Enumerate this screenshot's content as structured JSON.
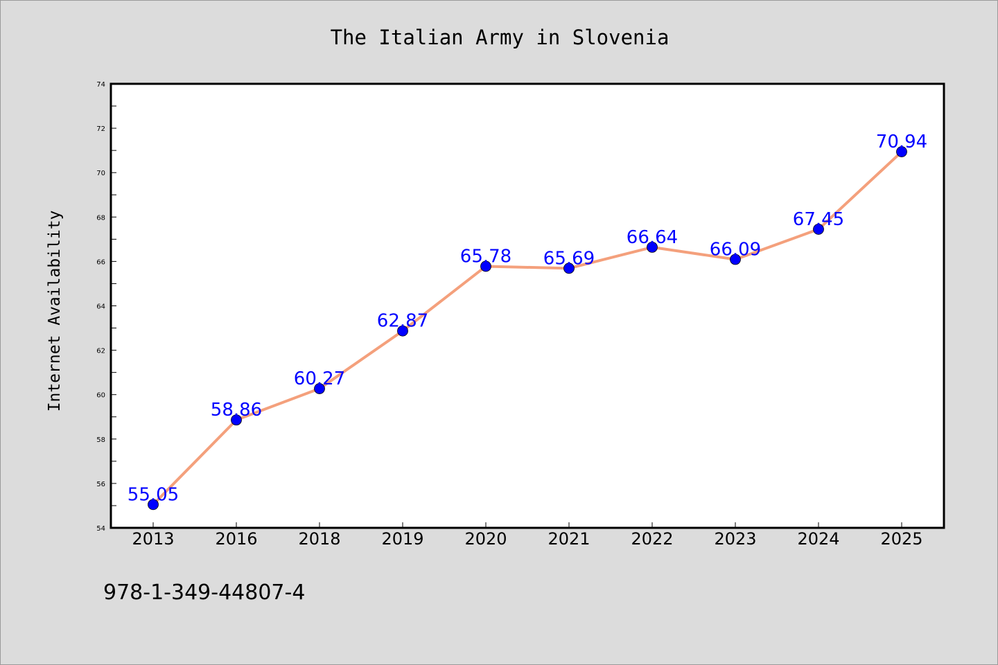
{
  "chart_data": {
    "type": "line",
    "title": "The Italian Army in Slovenia",
    "xlabel": "",
    "ylabel": "Internet Availability",
    "categories": [
      "2013",
      "2016",
      "2018",
      "2019",
      "2020",
      "2021",
      "2022",
      "2023",
      "2024",
      "2025"
    ],
    "series": [
      {
        "values": [
          55.05,
          58.86,
          60.27,
          62.87,
          65.78,
          65.69,
          66.64,
          66.09,
          67.45,
          70.94
        ],
        "data_labels": [
          "55.05",
          "58.86",
          "60.27",
          "62.87",
          "65.78",
          "65.69",
          "66.64",
          "66.09",
          "67.45",
          "70.94"
        ]
      }
    ],
    "ylim": [
      54,
      74
    ],
    "yticks": [
      "54",
      "56",
      "58",
      "60",
      "62",
      "64",
      "66",
      "68",
      "70",
      "72",
      "74"
    ],
    "grid": false,
    "legend": "none",
    "colors": {
      "line": "#f4a07c",
      "marker": "#0000ff",
      "data_label": "#0000ff",
      "background": "#dcdcdc",
      "plot_background": "#ffffff"
    }
  },
  "caption": "978-1-349-44807-4"
}
